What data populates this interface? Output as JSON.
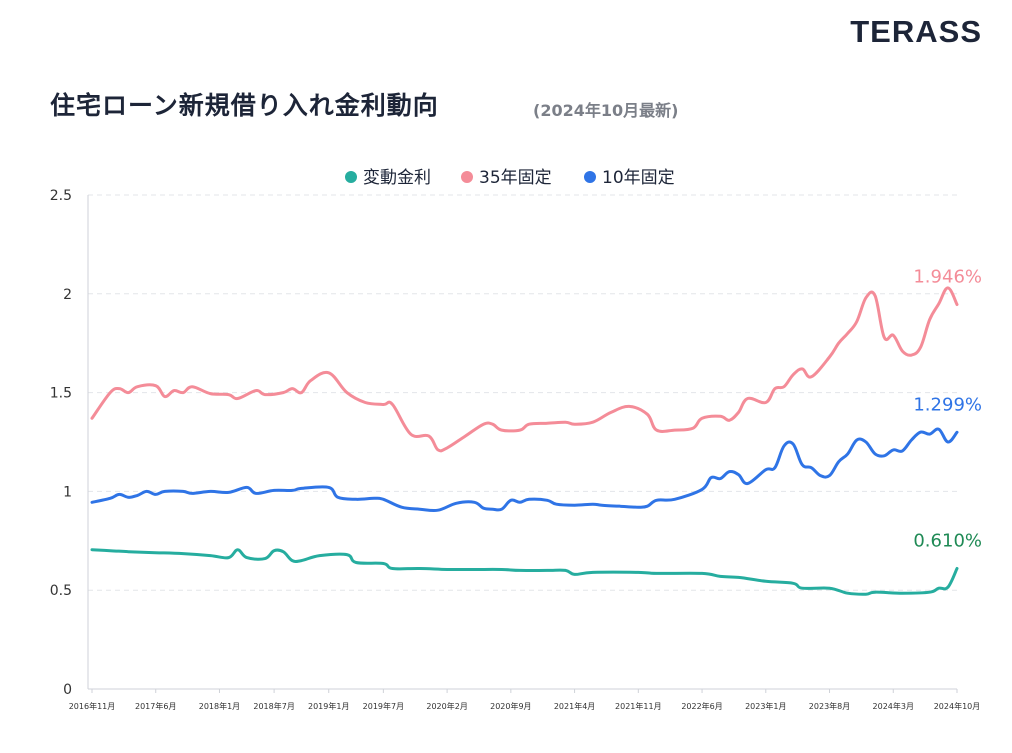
{
  "header": {
    "logo": "TERASS",
    "title": "住宅ローン新規借り入れ金利動向",
    "subtitle": "(2024年10月最新)"
  },
  "colors": {
    "variable": "#26ad9f",
    "fixed35": "#f48c98",
    "fixed10": "#2f74e6",
    "variable_label": "#1f8a55"
  },
  "chart_data": {
    "type": "line",
    "ylim": [
      0,
      2.5
    ],
    "yticks": [
      "0",
      "0.5",
      "1",
      "1.5",
      "2",
      "2.5"
    ],
    "ytick_values": [
      0,
      0.5,
      1,
      1.5,
      2,
      2.5
    ],
    "x_range": [
      "2016-11",
      "2024-10"
    ],
    "xticks": [
      {
        "label": "2016年11月",
        "date": "2016-11"
      },
      {
        "label": "2017年6月",
        "date": "2017-06"
      },
      {
        "label": "2018年1月",
        "date": "2018-01"
      },
      {
        "label": "2018年7月",
        "date": "2018-07"
      },
      {
        "label": "2019年1月",
        "date": "2019-01"
      },
      {
        "label": "2019年7月",
        "date": "2019-07"
      },
      {
        "label": "2020年2月",
        "date": "2020-02"
      },
      {
        "label": "2020年9月",
        "date": "2020-09"
      },
      {
        "label": "2021年4月",
        "date": "2021-04"
      },
      {
        "label": "2021年11月",
        "date": "2021-11"
      },
      {
        "label": "2022年6月",
        "date": "2022-06"
      },
      {
        "label": "2023年1月",
        "date": "2023-01"
      },
      {
        "label": "2023年8月",
        "date": "2023-08"
      },
      {
        "label": "2024年3月",
        "date": "2024-03"
      },
      {
        "label": "2024年10月",
        "date": "2024-10"
      }
    ],
    "grid": "horizontal-dashed",
    "legend_position": "top-center",
    "series": [
      {
        "key": "variable",
        "name": "変動金利",
        "end_label": "0.610%",
        "points": [
          [
            "2016-11",
            0.705
          ],
          [
            "2017-01",
            0.7
          ],
          [
            "2017-03",
            0.695
          ],
          [
            "2017-06",
            0.69
          ],
          [
            "2017-09",
            0.685
          ],
          [
            "2017-12",
            0.675
          ],
          [
            "2018-02",
            0.665
          ],
          [
            "2018-03",
            0.705
          ],
          [
            "2018-04",
            0.665
          ],
          [
            "2018-06",
            0.66
          ],
          [
            "2018-07",
            0.7
          ],
          [
            "2018-08",
            0.695
          ],
          [
            "2018-09",
            0.65
          ],
          [
            "2018-10",
            0.65
          ],
          [
            "2018-12",
            0.675
          ],
          [
            "2019-03",
            0.68
          ],
          [
            "2019-04",
            0.64
          ],
          [
            "2019-07",
            0.635
          ],
          [
            "2019-08",
            0.61
          ],
          [
            "2019-11",
            0.61
          ],
          [
            "2020-02",
            0.605
          ],
          [
            "2020-05",
            0.605
          ],
          [
            "2020-08",
            0.605
          ],
          [
            "2020-10",
            0.6
          ],
          [
            "2021-01",
            0.6
          ],
          [
            "2021-03",
            0.6
          ],
          [
            "2021-04",
            0.58
          ],
          [
            "2021-06",
            0.59
          ],
          [
            "2021-11",
            0.59
          ],
          [
            "2022-01",
            0.585
          ],
          [
            "2022-06",
            0.585
          ],
          [
            "2022-08",
            0.57
          ],
          [
            "2022-10",
            0.565
          ],
          [
            "2023-01",
            0.545
          ],
          [
            "2023-04",
            0.535
          ],
          [
            "2023-05",
            0.51
          ],
          [
            "2023-08",
            0.51
          ],
          [
            "2023-10",
            0.485
          ],
          [
            "2023-12",
            0.48
          ],
          [
            "2024-01",
            0.49
          ],
          [
            "2024-04",
            0.485
          ],
          [
            "2024-07",
            0.49
          ],
          [
            "2024-08",
            0.51
          ],
          [
            "2024-09",
            0.515
          ],
          [
            "2024-10",
            0.61
          ]
        ]
      },
      {
        "key": "fixed35",
        "name": "35年固定",
        "end_label": "1.946%",
        "points": [
          [
            "2016-11",
            1.37
          ],
          [
            "2017-01",
            1.5
          ],
          [
            "2017-02",
            1.52
          ],
          [
            "2017-03",
            1.5
          ],
          [
            "2017-04",
            1.53
          ],
          [
            "2017-06",
            1.535
          ],
          [
            "2017-07",
            1.48
          ],
          [
            "2017-08",
            1.51
          ],
          [
            "2017-09",
            1.5
          ],
          [
            "2017-10",
            1.53
          ],
          [
            "2017-12",
            1.495
          ],
          [
            "2018-02",
            1.49
          ],
          [
            "2018-03",
            1.47
          ],
          [
            "2018-05",
            1.51
          ],
          [
            "2018-06",
            1.49
          ],
          [
            "2018-08",
            1.5
          ],
          [
            "2018-09",
            1.52
          ],
          [
            "2018-10",
            1.5
          ],
          [
            "2018-11",
            1.56
          ],
          [
            "2019-01",
            1.6
          ],
          [
            "2019-03",
            1.5
          ],
          [
            "2019-05",
            1.45
          ],
          [
            "2019-07",
            1.44
          ],
          [
            "2019-08",
            1.44
          ],
          [
            "2019-10",
            1.29
          ],
          [
            "2019-12",
            1.28
          ],
          [
            "2020-01",
            1.21
          ],
          [
            "2020-02",
            1.22
          ],
          [
            "2020-04",
            1.28
          ],
          [
            "2020-06",
            1.34
          ],
          [
            "2020-07",
            1.34
          ],
          [
            "2020-08",
            1.31
          ],
          [
            "2020-10",
            1.31
          ],
          [
            "2020-11",
            1.34
          ],
          [
            "2021-01",
            1.345
          ],
          [
            "2021-03",
            1.35
          ],
          [
            "2021-04",
            1.34
          ],
          [
            "2021-06",
            1.35
          ],
          [
            "2021-08",
            1.4
          ],
          [
            "2021-10",
            1.43
          ],
          [
            "2021-12",
            1.39
          ],
          [
            "2022-01",
            1.31
          ],
          [
            "2022-03",
            1.31
          ],
          [
            "2022-05",
            1.32
          ],
          [
            "2022-06",
            1.37
          ],
          [
            "2022-08",
            1.38
          ],
          [
            "2022-09",
            1.36
          ],
          [
            "2022-10",
            1.4
          ],
          [
            "2022-11",
            1.47
          ],
          [
            "2023-01",
            1.45
          ],
          [
            "2023-02",
            1.52
          ],
          [
            "2023-03",
            1.53
          ],
          [
            "2023-04",
            1.59
          ],
          [
            "2023-05",
            1.62
          ],
          [
            "2023-06",
            1.58
          ],
          [
            "2023-08",
            1.68
          ],
          [
            "2023-09",
            1.75
          ],
          [
            "2023-10",
            1.8
          ],
          [
            "2023-11",
            1.86
          ],
          [
            "2023-12",
            1.98
          ],
          [
            "2024-01",
            1.99
          ],
          [
            "2024-02",
            1.78
          ],
          [
            "2024-03",
            1.79
          ],
          [
            "2024-04",
            1.71
          ],
          [
            "2024-05",
            1.69
          ],
          [
            "2024-06",
            1.73
          ],
          [
            "2024-07",
            1.87
          ],
          [
            "2024-08",
            1.95
          ],
          [
            "2024-09",
            2.03
          ],
          [
            "2024-10",
            1.946
          ]
        ]
      },
      {
        "key": "fixed10",
        "name": "10年固定",
        "end_label": "1.299%",
        "points": [
          [
            "2016-11",
            0.945
          ],
          [
            "2017-01",
            0.965
          ],
          [
            "2017-02",
            0.985
          ],
          [
            "2017-03",
            0.97
          ],
          [
            "2017-04",
            0.98
          ],
          [
            "2017-05",
            1.0
          ],
          [
            "2017-06",
            0.985
          ],
          [
            "2017-07",
            1.0
          ],
          [
            "2017-09",
            1.0
          ],
          [
            "2017-10",
            0.99
          ],
          [
            "2017-12",
            1.0
          ],
          [
            "2018-02",
            0.995
          ],
          [
            "2018-04",
            1.02
          ],
          [
            "2018-05",
            0.99
          ],
          [
            "2018-07",
            1.005
          ],
          [
            "2018-09",
            1.005
          ],
          [
            "2018-10",
            1.015
          ],
          [
            "2019-01",
            1.02
          ],
          [
            "2019-02",
            0.97
          ],
          [
            "2019-04",
            0.96
          ],
          [
            "2019-06",
            0.965
          ],
          [
            "2019-07",
            0.96
          ],
          [
            "2019-09",
            0.92
          ],
          [
            "2019-11",
            0.91
          ],
          [
            "2020-01",
            0.905
          ],
          [
            "2020-03",
            0.94
          ],
          [
            "2020-05",
            0.945
          ],
          [
            "2020-06",
            0.915
          ],
          [
            "2020-07",
            0.91
          ],
          [
            "2020-08",
            0.91
          ],
          [
            "2020-09",
            0.955
          ],
          [
            "2020-10",
            0.945
          ],
          [
            "2020-11",
            0.96
          ],
          [
            "2021-01",
            0.955
          ],
          [
            "2021-02",
            0.935
          ],
          [
            "2021-04",
            0.93
          ],
          [
            "2021-06",
            0.935
          ],
          [
            "2021-07",
            0.93
          ],
          [
            "2021-09",
            0.925
          ],
          [
            "2021-11",
            0.92
          ],
          [
            "2021-12",
            0.925
          ],
          [
            "2022-01",
            0.955
          ],
          [
            "2022-03",
            0.96
          ],
          [
            "2022-06",
            1.01
          ],
          [
            "2022-07",
            1.07
          ],
          [
            "2022-08",
            1.065
          ],
          [
            "2022-09",
            1.1
          ],
          [
            "2022-10",
            1.085
          ],
          [
            "2022-11",
            1.04
          ],
          [
            "2023-01",
            1.11
          ],
          [
            "2023-02",
            1.12
          ],
          [
            "2023-03",
            1.23
          ],
          [
            "2023-04",
            1.24
          ],
          [
            "2023-05",
            1.135
          ],
          [
            "2023-06",
            1.12
          ],
          [
            "2023-07",
            1.08
          ],
          [
            "2023-08",
            1.08
          ],
          [
            "2023-09",
            1.15
          ],
          [
            "2023-10",
            1.19
          ],
          [
            "2023-11",
            1.26
          ],
          [
            "2023-12",
            1.25
          ],
          [
            "2024-01",
            1.19
          ],
          [
            "2024-02",
            1.18
          ],
          [
            "2024-03",
            1.21
          ],
          [
            "2024-04",
            1.205
          ],
          [
            "2024-05",
            1.26
          ],
          [
            "2024-06",
            1.3
          ],
          [
            "2024-07",
            1.29
          ],
          [
            "2024-08",
            1.315
          ],
          [
            "2024-09",
            1.25
          ],
          [
            "2024-10",
            1.299
          ]
        ]
      }
    ]
  }
}
